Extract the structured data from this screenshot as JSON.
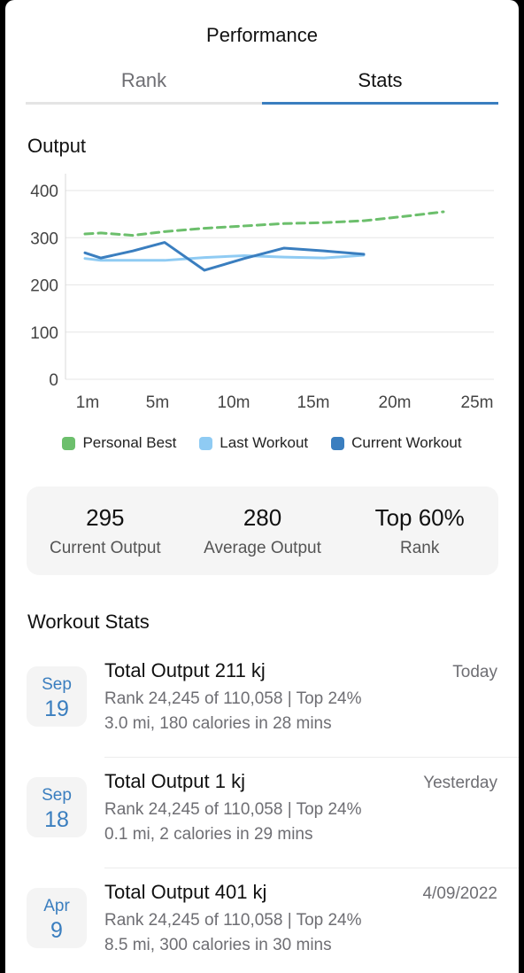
{
  "header": {
    "title": "Performance"
  },
  "tabs": [
    {
      "label": "Rank",
      "active": false
    },
    {
      "label": "Stats",
      "active": true
    }
  ],
  "output_section": {
    "title": "Output"
  },
  "chart_data": {
    "type": "line",
    "title": "Output",
    "x_ticks": [
      "1m",
      "5m",
      "10m",
      "15m",
      "20m",
      "25m"
    ],
    "y_ticks": [
      "0",
      "100",
      "200",
      "300",
      "400"
    ],
    "ylim": [
      0,
      400
    ],
    "grid": true,
    "legend_placement": "bottom",
    "series": [
      {
        "name": "Personal Best",
        "color": "#6cbf6c",
        "style": "dashed",
        "x": [
          0,
          0.4,
          1.2,
          2,
          3,
          4,
          5,
          6,
          7,
          8,
          9
        ],
        "values": [
          308,
          310,
          305,
          313,
          320,
          325,
          330,
          332,
          336,
          345,
          355
        ]
      },
      {
        "name": "Last Workout",
        "color": "#8fcbf3",
        "style": "solid",
        "x": [
          0,
          0.4,
          1.2,
          2,
          3,
          4,
          5,
          6,
          7
        ],
        "values": [
          256,
          252,
          252,
          252,
          258,
          262,
          259,
          257,
          263
        ]
      },
      {
        "name": "Current Workout",
        "color": "#3a7ebf",
        "style": "solid",
        "x": [
          0,
          0.4,
          1.2,
          2,
          3,
          4,
          5,
          6,
          7
        ],
        "values": [
          268,
          257,
          272,
          290,
          231,
          256,
          278,
          272,
          265
        ]
      }
    ]
  },
  "summary": [
    {
      "value": "295",
      "label": "Current Output"
    },
    {
      "value": "280",
      "label": "Average Output"
    },
    {
      "value": "Top 60%",
      "label": "Rank"
    }
  ],
  "workout_section": {
    "title": "Workout Stats"
  },
  "workouts": [
    {
      "month": "Sep",
      "day": "19",
      "title": "Total Output 211 kj",
      "when": "Today",
      "rank": "Rank 24,245 of 110,058 | Top 24%",
      "details": "3.0 mi, 180 calories in 28 mins"
    },
    {
      "month": "Sep",
      "day": "18",
      "title": "Total Output 1 kj",
      "when": "Yesterday",
      "rank": "Rank 24,245 of 110,058 | Top 24%",
      "details": "0.1 mi, 2 calories in 29 mins"
    },
    {
      "month": "Apr",
      "day": "9",
      "title": "Total Output 401 kj",
      "when": "4/09/2022",
      "rank": "Rank 24,245 of 110,058 | Top 24%",
      "details": "8.5 mi, 300 calories in 30 mins"
    }
  ]
}
